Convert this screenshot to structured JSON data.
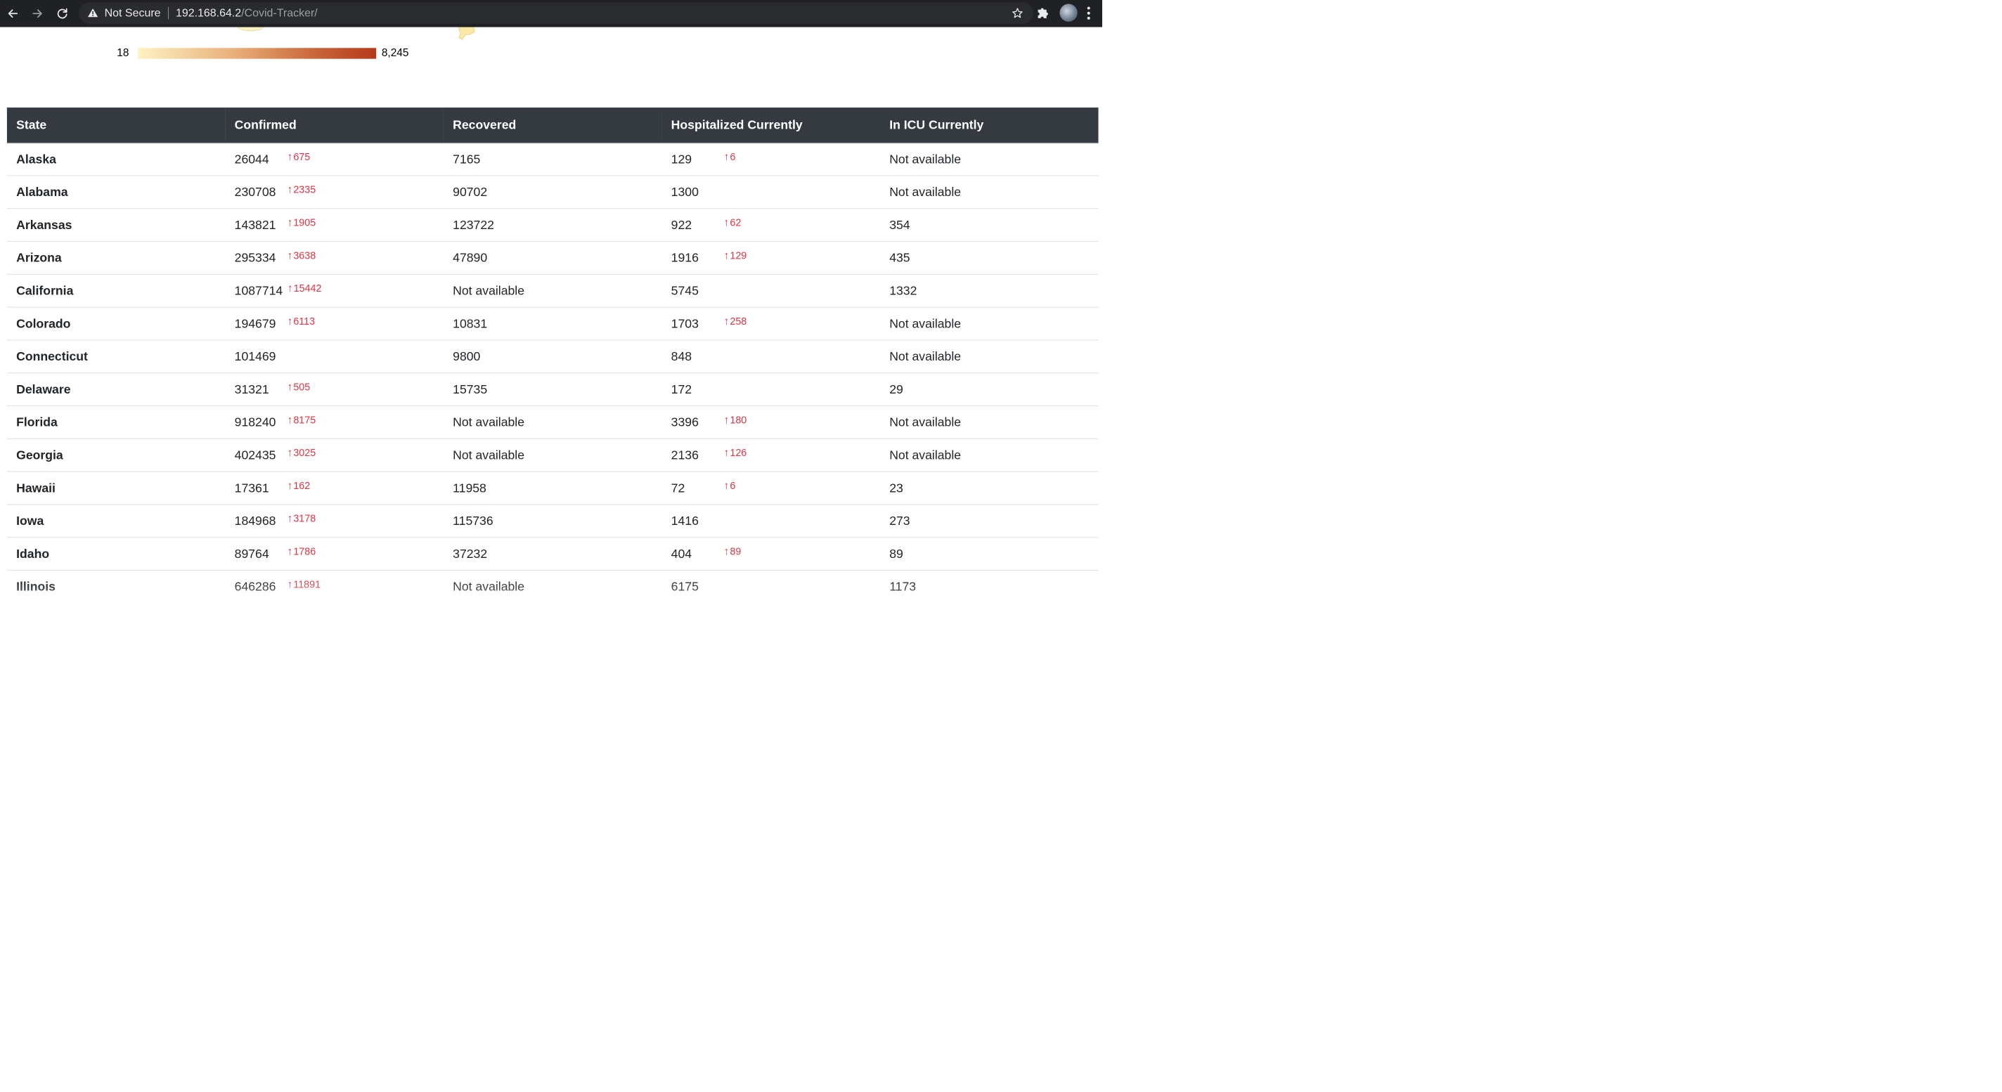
{
  "browser": {
    "security_label": "Not Secure",
    "url_host": "192.168.64.2",
    "url_path": "/Covid-Tracker/",
    "icons": {
      "back": "arrow-left-icon",
      "forward": "arrow-right-icon",
      "reload": "reload-icon",
      "warning": "warning-triangle-icon",
      "bookmark": "star-icon",
      "extensions": "puzzle-icon",
      "menu": "kebab-menu-icon"
    }
  },
  "legend": {
    "min_label": "18",
    "max_label": "8,245",
    "colors": [
      "#fdf3c4",
      "#e9b07a",
      "#c8643a",
      "#b53a1a"
    ]
  },
  "table": {
    "headers": {
      "state": "State",
      "confirmed": "Confirmed",
      "recovered": "Recovered",
      "hospitalized": "Hospitalized Currently",
      "icu": "In ICU Currently"
    },
    "delta_color": "#dc3545",
    "rows": [
      {
        "state": "Alaska",
        "confirmed": "26044",
        "confirmed_delta": "675",
        "recovered": "7165",
        "hospitalized": "129",
        "hospitalized_delta": "6",
        "icu": "Not available"
      },
      {
        "state": "Alabama",
        "confirmed": "230708",
        "confirmed_delta": "2335",
        "recovered": "90702",
        "hospitalized": "1300",
        "hospitalized_delta": "",
        "icu": "Not available"
      },
      {
        "state": "Arkansas",
        "confirmed": "143821",
        "confirmed_delta": "1905",
        "recovered": "123722",
        "hospitalized": "922",
        "hospitalized_delta": "62",
        "icu": "354"
      },
      {
        "state": "Arizona",
        "confirmed": "295334",
        "confirmed_delta": "3638",
        "recovered": "47890",
        "hospitalized": "1916",
        "hospitalized_delta": "129",
        "icu": "435"
      },
      {
        "state": "California",
        "confirmed": "1087714",
        "confirmed_delta": "15442",
        "recovered": "Not available",
        "hospitalized": "5745",
        "hospitalized_delta": "",
        "icu": "1332"
      },
      {
        "state": "Colorado",
        "confirmed": "194679",
        "confirmed_delta": "6113",
        "recovered": "10831",
        "hospitalized": "1703",
        "hospitalized_delta": "258",
        "icu": "Not available"
      },
      {
        "state": "Connecticut",
        "confirmed": "101469",
        "confirmed_delta": "",
        "recovered": "9800",
        "hospitalized": "848",
        "hospitalized_delta": "",
        "icu": "Not available"
      },
      {
        "state": "Delaware",
        "confirmed": "31321",
        "confirmed_delta": "505",
        "recovered": "15735",
        "hospitalized": "172",
        "hospitalized_delta": "",
        "icu": "29"
      },
      {
        "state": "Florida",
        "confirmed": "918240",
        "confirmed_delta": "8175",
        "recovered": "Not available",
        "hospitalized": "3396",
        "hospitalized_delta": "180",
        "icu": "Not available"
      },
      {
        "state": "Georgia",
        "confirmed": "402435",
        "confirmed_delta": "3025",
        "recovered": "Not available",
        "hospitalized": "2136",
        "hospitalized_delta": "126",
        "icu": "Not available"
      },
      {
        "state": "Hawaii",
        "confirmed": "17361",
        "confirmed_delta": "162",
        "recovered": "11958",
        "hospitalized": "72",
        "hospitalized_delta": "6",
        "icu": "23"
      },
      {
        "state": "Iowa",
        "confirmed": "184968",
        "confirmed_delta": "3178",
        "recovered": "115736",
        "hospitalized": "1416",
        "hospitalized_delta": "",
        "icu": "273"
      },
      {
        "state": "Idaho",
        "confirmed": "89764",
        "confirmed_delta": "1786",
        "recovered": "37232",
        "hospitalized": "404",
        "hospitalized_delta": "89",
        "icu": "89"
      },
      {
        "state": "Illinois",
        "confirmed": "646286",
        "confirmed_delta": "11891",
        "recovered": "Not available",
        "hospitalized": "6175",
        "hospitalized_delta": "",
        "icu": "1173"
      }
    ]
  }
}
